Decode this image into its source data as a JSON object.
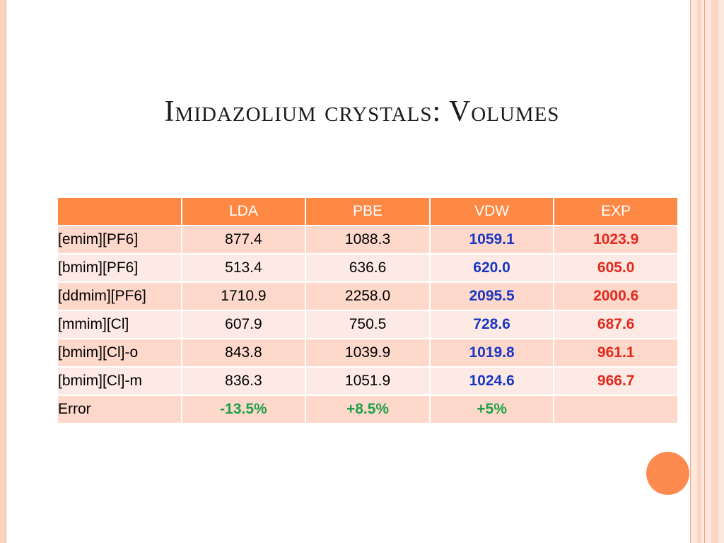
{
  "slide": {
    "title": "Imidazolium crystals: Volumes"
  },
  "table": {
    "headers": [
      "",
      "LDA",
      "PBE",
      "VDW",
      "EXP"
    ],
    "rows": [
      {
        "label": "[emim][PF6]",
        "lda": "877.4",
        "pbe": "1088.3",
        "vdw": "1059.1",
        "exp": "1023.9"
      },
      {
        "label": "[bmim][PF6]",
        "lda": "513.4",
        "pbe": "636.6",
        "vdw": "620.0",
        "exp": "605.0"
      },
      {
        "label": "[ddmim][PF6]",
        "lda": "1710.9",
        "pbe": "2258.0",
        "vdw": "2095.5",
        "exp": "2000.6"
      },
      {
        "label": "[mmim][Cl]",
        "lda": "607.9",
        "pbe": "750.5",
        "vdw": "728.6",
        "exp": "687.6"
      },
      {
        "label": "[bmim][Cl]-o",
        "lda": "843.8",
        "pbe": "1039.9",
        "vdw": "1019.8",
        "exp": "961.1"
      },
      {
        "label": "[bmim][Cl]-m",
        "lda": "836.3",
        "pbe": "1051.9",
        "vdw": "1024.6",
        "exp": "966.7"
      },
      {
        "label": "Error",
        "lda": "-13.5%",
        "pbe": "+8.5%",
        "vdw": "+5%",
        "exp": ""
      }
    ]
  },
  "colors": {
    "header_bg": "#fd8844",
    "row_dark": "#fdd8cb",
    "row_light": "#fdeae4",
    "vdw_text": "#1a37c2",
    "exp_text": "#e3281c",
    "error_text": "#1ea04a",
    "accent_dot": "#fd8a4e"
  }
}
